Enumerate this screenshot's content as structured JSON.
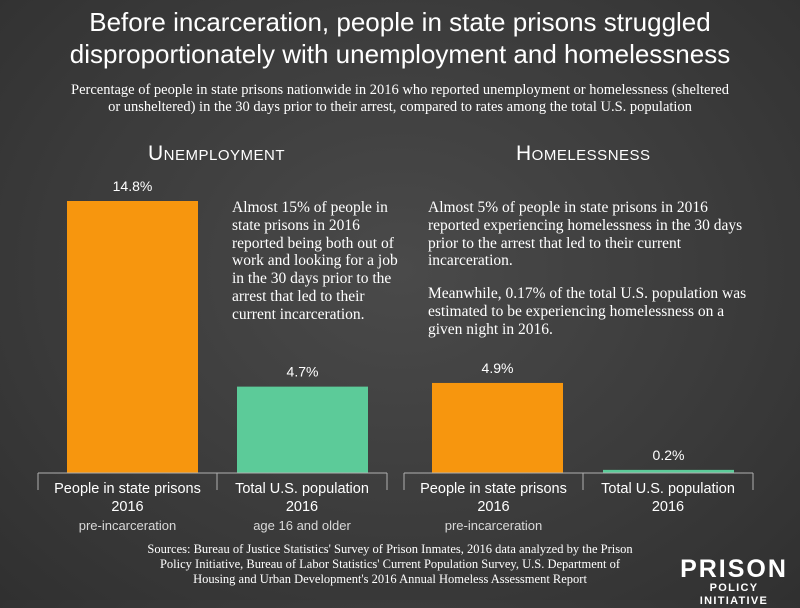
{
  "title_line1": "Before incarceration, people in state prisons struggled",
  "title_line2": "disproportionately with unemployment and homelessness",
  "subtitle_line1": "Percentage of people in state prisons nationwide in 2016 who reported unemployment or homelessness (sheltered",
  "subtitle_line2": "or unsheltered) in the 30 days prior to their arrest, compared to rates among the total U.S. population",
  "colors": {
    "orange": "#f7960e",
    "green": "#5ccb99",
    "background": "#3e3e3e",
    "axis": "#b0b0b0"
  },
  "chart_data": [
    {
      "type": "bar",
      "title": "Unemployment",
      "categories": [
        "People in state prisons 2016",
        "Total U.S. population 2016"
      ],
      "category_notes": [
        "pre-incarceration",
        "age 16 and older"
      ],
      "values": [
        14.8,
        4.7
      ],
      "value_labels": [
        "14.8%",
        "4.7%"
      ],
      "bar_colors": [
        "#f7960e",
        "#5ccb99"
      ],
      "ylim": [
        0,
        16
      ]
    },
    {
      "type": "bar",
      "title": "Homelessness",
      "categories": [
        "People in state prisons 2016",
        "Total U.S. population 2016"
      ],
      "category_notes": [
        "pre-incarceration",
        ""
      ],
      "values": [
        4.9,
        0.17
      ],
      "value_labels": [
        "4.9%",
        "0.2%"
      ],
      "bar_colors": [
        "#f7960e",
        "#5ccb99"
      ],
      "ylim": [
        0,
        16
      ]
    }
  ],
  "labels": {
    "unemp_cat1_line1": "People in state prisons",
    "unemp_cat1_line2": "2016",
    "unemp_cat1_note": "pre-incarceration",
    "unemp_cat2_line1": "Total U.S. population",
    "unemp_cat2_line2": "2016",
    "unemp_cat2_note": "age 16 and older",
    "home_cat1_line1": "People in state prisons",
    "home_cat1_line2": "2016",
    "home_cat1_note": "pre-incarceration",
    "home_cat2_line1": "Total U.S. population",
    "home_cat2_line2": "2016"
  },
  "unemployment_note": "Almost 15% of people in state prisons in 2016 reported being both out of work and looking for a job in the 30 days prior to the arrest that led to their current incarceration.",
  "homelessness_note_1": "Almost 5% of people in state prisons in 2016 reported experiencing homelessness in the 30 days prior to the arrest that led to their current incarceration.",
  "homelessness_note_2": "Meanwhile, 0.17% of the total U.S. population was estimated to be experiencing homelessness on a given night in 2016.",
  "sources_line1": "Sources: Bureau of Justice Statistics' Survey of Prison Inmates, 2016 data analyzed by the Prison",
  "sources_line2": "Policy Initiative, Bureau of Labor Statistics' Current Population Survey, U.S. Department of",
  "sources_line3": "Housing and Urban Development's 2016 Annual Homeless Assessment Report",
  "logo_line1": "PRISON",
  "logo_line2": "POLICY INITIATIVE"
}
